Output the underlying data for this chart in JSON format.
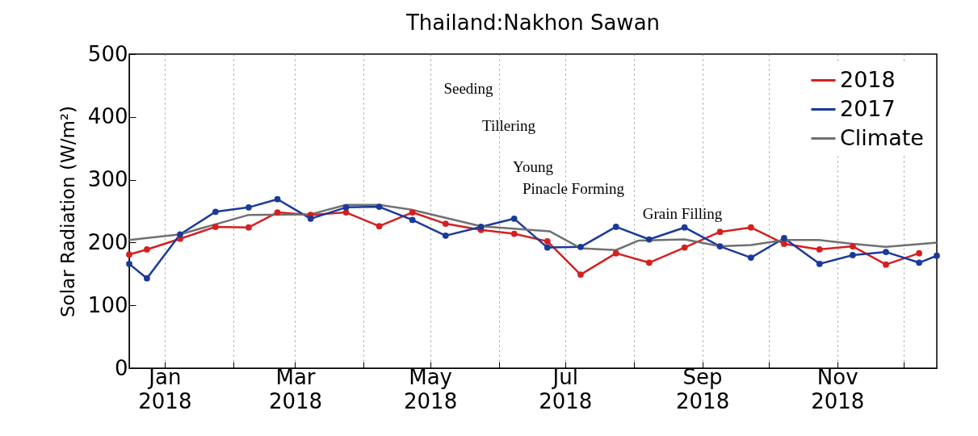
{
  "chart_data": {
    "type": "line",
    "title": "Thailand:Nakhon Sawan",
    "ylabel": "Solar Radiation (W/m²)",
    "annotations": [
      "Seeding",
      "Tillering",
      "Young",
      "Pinacle Forming",
      "Grain Filling"
    ],
    "xlim": [
      "2017-12-16",
      "2018-12-16"
    ],
    "ylim": [
      0,
      500
    ],
    "yticks": [
      0,
      100,
      200,
      300,
      400,
      500
    ],
    "xticks": [
      {
        "value": "2018-01-01",
        "label": "Jan 2018"
      },
      {
        "value": "2018-02-01",
        "label": null
      },
      {
        "value": "2018-03-01",
        "label": "Mar 2018"
      },
      {
        "value": "2018-04-01",
        "label": null
      },
      {
        "value": "2018-05-01",
        "label": "May 2018"
      },
      {
        "value": "2018-06-01",
        "label": null
      },
      {
        "value": "2018-07-01",
        "label": "Jul 2018"
      },
      {
        "value": "2018-08-01",
        "label": null
      },
      {
        "value": "2018-09-01",
        "label": "Sep 2018"
      },
      {
        "value": "2018-10-01",
        "label": null
      },
      {
        "value": "2018-11-01",
        "label": "Nov 2018"
      },
      {
        "value": "2018-12-01",
        "label": null
      }
    ],
    "grid": "x",
    "legend": "top right",
    "series": [
      {
        "name": "2018",
        "color": "#d42020",
        "marker": "circle",
        "x": [
          "2017-12-16",
          "2017-12-24",
          "2018-01-08",
          "2018-01-24",
          "2018-02-08",
          "2018-02-21",
          "2018-03-08",
          "2018-03-24",
          "2018-04-08",
          "2018-04-23",
          "2018-05-08",
          "2018-05-24",
          "2018-06-08",
          "2018-06-23",
          "2018-07-08",
          "2018-07-24",
          "2018-08-08",
          "2018-08-24",
          "2018-09-09",
          "2018-09-23",
          "2018-10-08",
          "2018-10-24",
          "2018-11-08",
          "2018-11-23",
          "2018-12-08"
        ],
        "values": [
          181,
          189,
          206,
          225,
          224,
          248,
          244,
          248,
          226,
          248,
          230,
          220,
          214,
          202,
          149,
          183,
          168,
          192,
          217,
          224,
          198,
          189,
          194,
          165,
          183
        ]
      },
      {
        "name": "2017",
        "color": "#1a3a9a",
        "marker": "circle",
        "x": [
          "2017-12-16",
          "2017-12-24",
          "2018-01-08",
          "2018-01-24",
          "2018-02-08",
          "2018-02-21",
          "2018-03-08",
          "2018-03-24",
          "2018-04-08",
          "2018-04-23",
          "2018-05-08",
          "2018-05-24",
          "2018-06-08",
          "2018-06-23",
          "2018-07-08",
          "2018-07-24",
          "2018-08-08",
          "2018-08-24",
          "2018-09-09",
          "2018-09-23",
          "2018-10-08",
          "2018-10-24",
          "2018-11-08",
          "2018-11-23",
          "2018-12-08",
          "2018-12-16"
        ],
        "values": [
          166,
          143,
          213,
          249,
          256,
          269,
          238,
          256,
          257,
          236,
          211,
          225,
          238,
          192,
          193,
          225,
          205,
          224,
          194,
          176,
          207,
          166,
          180,
          185,
          168,
          179
        ]
      },
      {
        "name": "Climate",
        "color": "#707070",
        "marker": "none",
        "x": [
          "2017-12-16",
          "2018-01-08",
          "2018-02-08",
          "2018-03-08",
          "2018-03-24",
          "2018-04-08",
          "2018-04-23",
          "2018-05-24",
          "2018-06-24",
          "2018-07-08",
          "2018-07-24",
          "2018-08-03",
          "2018-08-24",
          "2018-09-09",
          "2018-09-23",
          "2018-10-08",
          "2018-10-24",
          "2018-11-08",
          "2018-11-23",
          "2018-12-16"
        ],
        "values": [
          204,
          213,
          244,
          245,
          260,
          260,
          252,
          226,
          218,
          191,
          188,
          203,
          205,
          194,
          196,
          204,
          204,
          198,
          193,
          200
        ]
      }
    ]
  }
}
